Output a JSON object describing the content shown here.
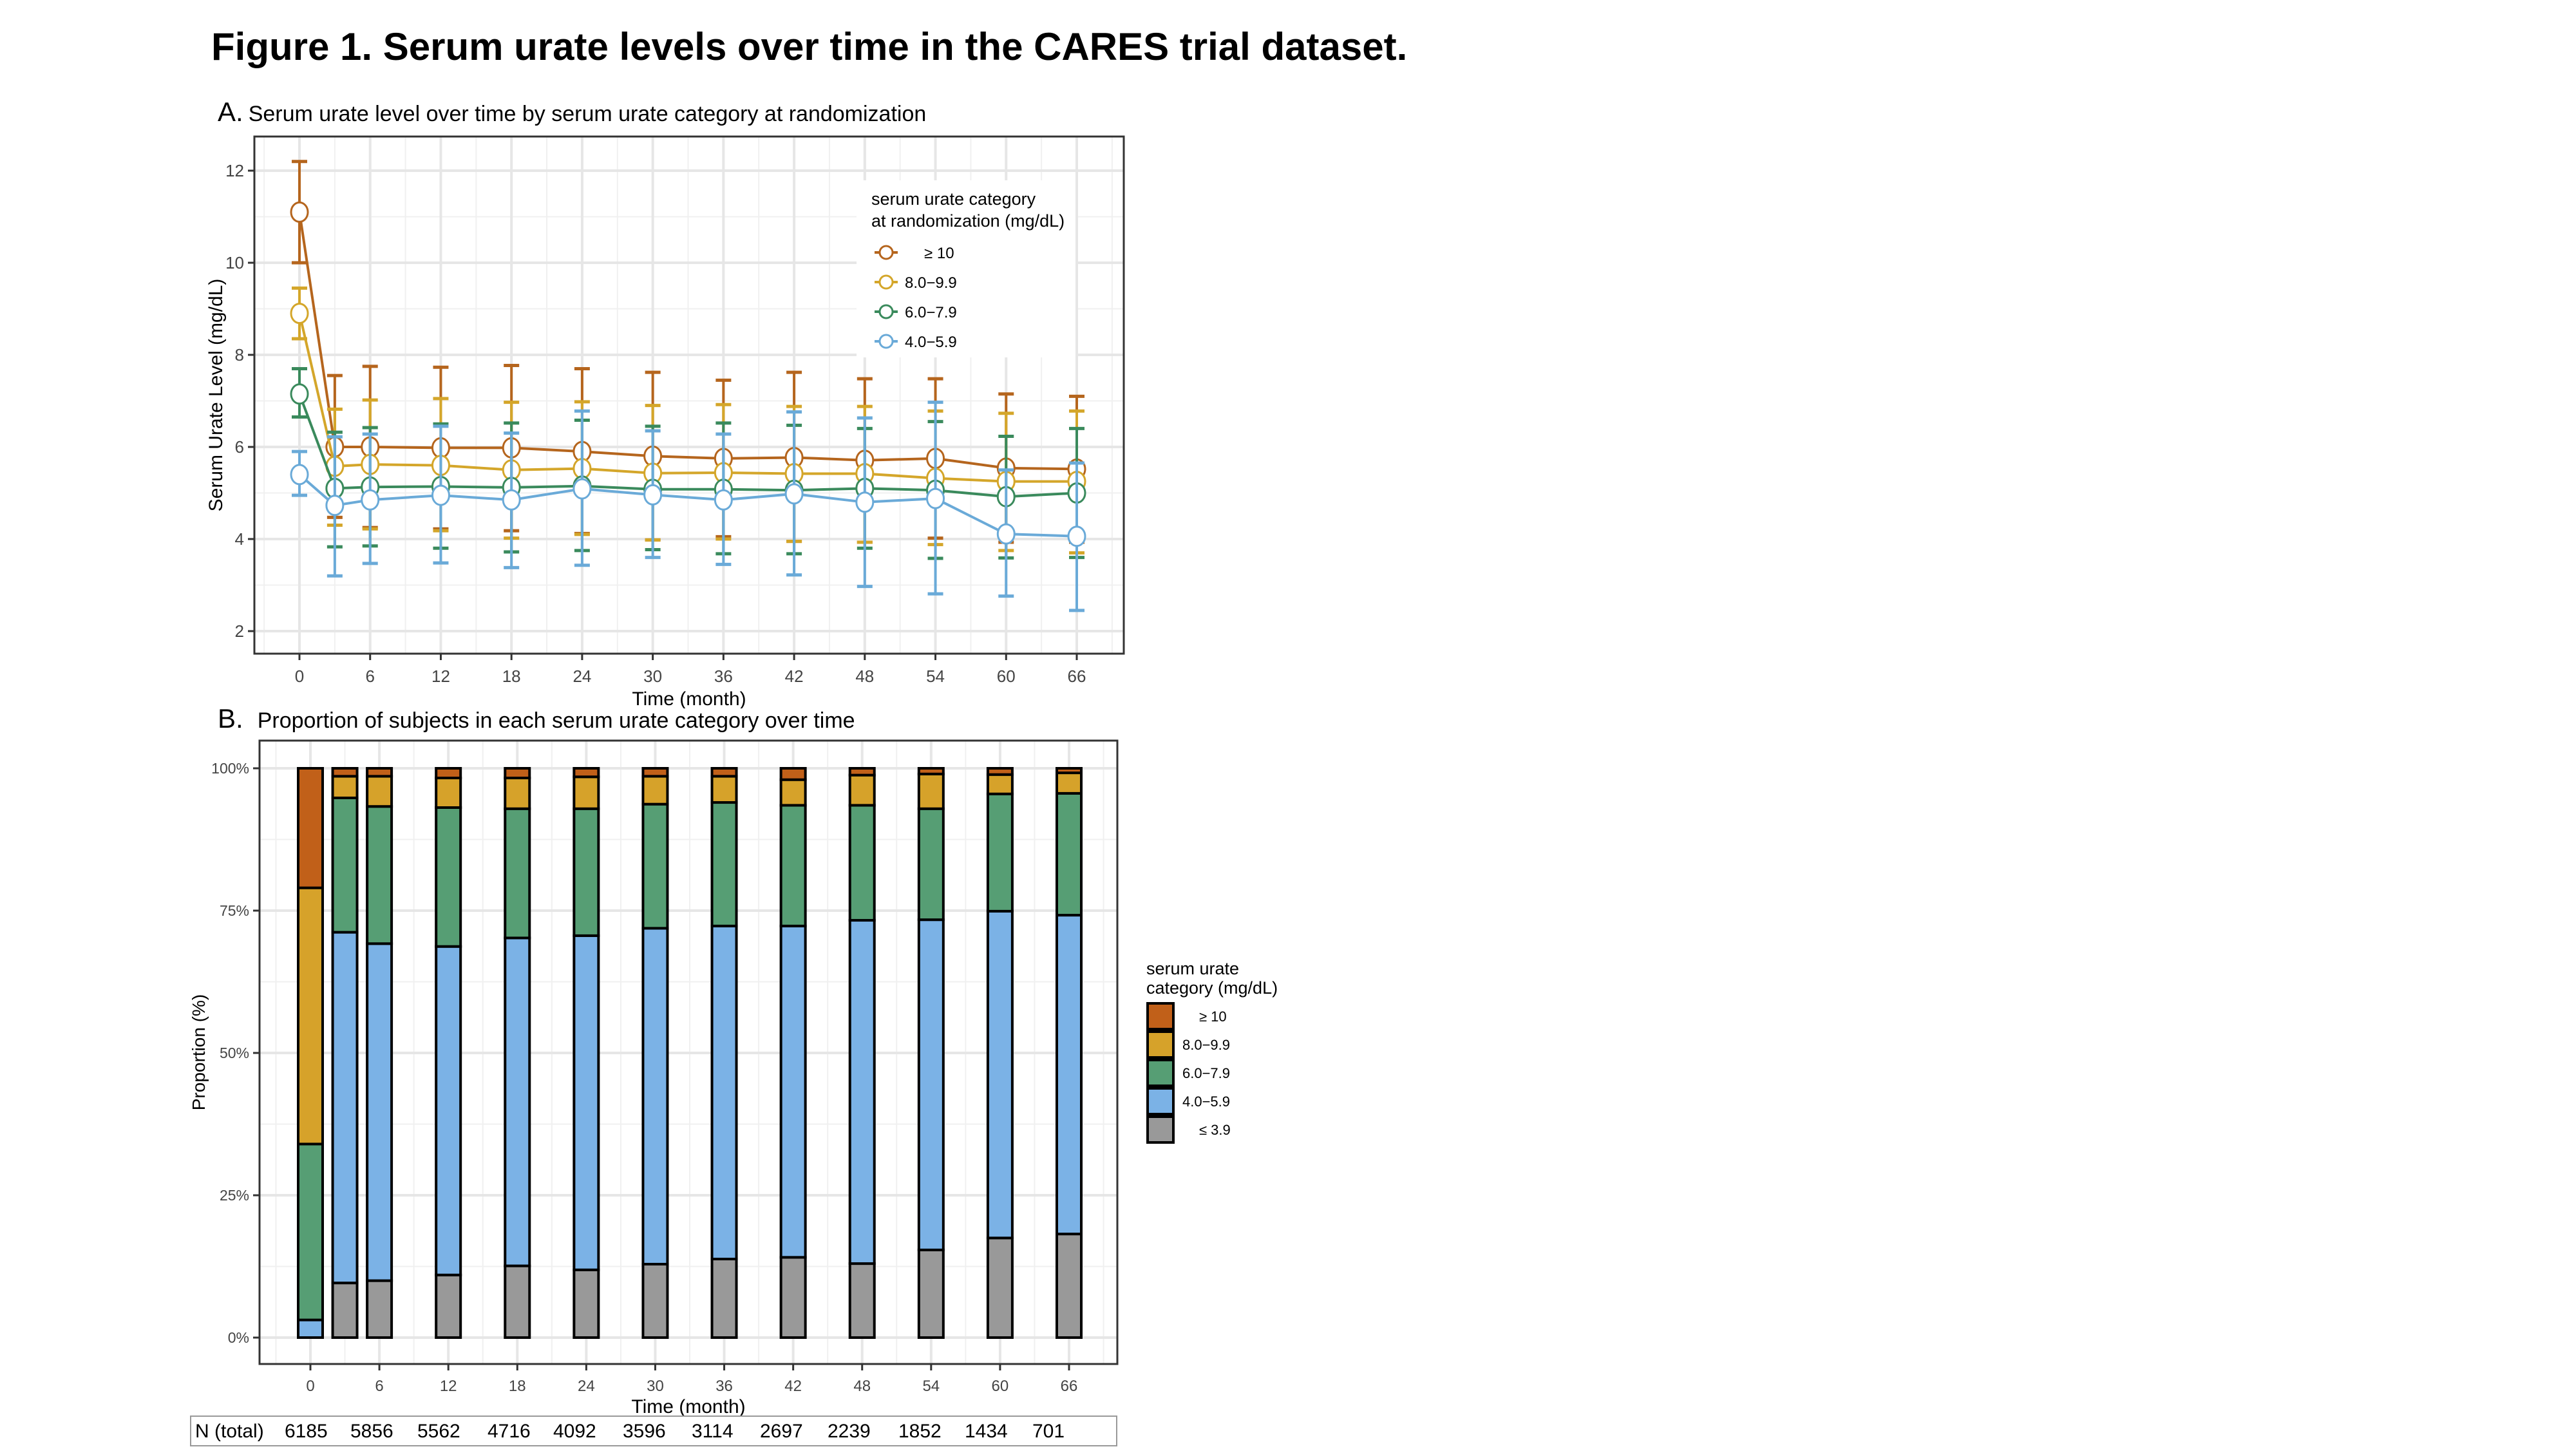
{
  "figure_title": "Figure 1. Serum urate levels over time in the CARES trial dataset.",
  "panel_a": {
    "letter": "A.",
    "subtitle": "Serum urate level over time by serum urate category at randomization"
  },
  "panel_b": {
    "letter": "B.",
    "subtitle": "Proportion of subjects in each serum urate category over time"
  },
  "n_total": {
    "label": "N (total)",
    "values": [
      "6185",
      "5856",
      "5562",
      "4716",
      "4092",
      "3596",
      "3114",
      "2697",
      "2239",
      "1852",
      "1434",
      "701"
    ]
  },
  "chart_data": [
    {
      "type": "line",
      "title": "Serum urate level over time by serum urate category at randomization",
      "xlabel": "Time (month)",
      "ylabel": "Serum Urate Level (mg/dL)",
      "x": [
        0,
        3,
        6,
        12,
        18,
        24,
        30,
        36,
        42,
        48,
        54,
        60,
        66
      ],
      "xticks": [
        0,
        6,
        12,
        18,
        24,
        30,
        36,
        42,
        48,
        54,
        60,
        66
      ],
      "yticks": [
        2,
        4,
        6,
        8,
        10,
        12
      ],
      "xlim": [
        -4,
        70
      ],
      "ylim": [
        1.5,
        12.7
      ],
      "grid": true,
      "legend": {
        "title": "serum urate category\nat randomization (mg/dL)",
        "position": "top-right"
      },
      "series": [
        {
          "name": "≥ 10",
          "color": "#B5651D",
          "mean": [
            11.1,
            6.0,
            6.0,
            5.98,
            5.98,
            5.9,
            5.8,
            5.75,
            5.77,
            5.71,
            5.75,
            5.54,
            5.52
          ],
          "upper": [
            12.2,
            7.55,
            7.75,
            7.73,
            7.77,
            7.7,
            7.62,
            7.45,
            7.62,
            7.48,
            7.48,
            7.15,
            7.1
          ],
          "lower": [
            10.0,
            4.47,
            4.25,
            4.22,
            4.18,
            4.12,
            3.98,
            4.05,
            3.95,
            3.93,
            4.02,
            3.93,
            3.93
          ]
        },
        {
          "name": "8.0−9.9",
          "color": "#D4A62A",
          "mean": [
            8.9,
            5.58,
            5.62,
            5.6,
            5.5,
            5.53,
            5.43,
            5.44,
            5.42,
            5.42,
            5.32,
            5.25,
            5.25
          ],
          "upper": [
            9.45,
            6.82,
            7.02,
            7.05,
            6.97,
            6.98,
            6.9,
            6.92,
            6.88,
            6.88,
            6.78,
            6.73,
            6.78
          ],
          "lower": [
            8.35,
            4.3,
            4.22,
            4.18,
            4.02,
            4.1,
            3.98,
            4.0,
            3.95,
            3.93,
            3.88,
            3.75,
            3.7
          ]
        },
        {
          "name": "6.0−7.9",
          "color": "#3A8A5C",
          "mean": [
            7.15,
            5.1,
            5.13,
            5.14,
            5.12,
            5.15,
            5.08,
            5.08,
            5.06,
            5.1,
            5.06,
            4.92,
            5.0
          ],
          "upper": [
            7.7,
            6.32,
            6.42,
            6.5,
            6.52,
            6.58,
            6.45,
            6.52,
            6.47,
            6.4,
            6.55,
            6.23,
            6.4
          ],
          "lower": [
            6.65,
            3.83,
            3.85,
            3.8,
            3.72,
            3.75,
            3.77,
            3.68,
            3.68,
            3.8,
            3.58,
            3.59,
            3.6
          ]
        },
        {
          "name": "4.0−5.9",
          "color": "#6AAAD8",
          "mean": [
            5.4,
            4.73,
            4.85,
            4.95,
            4.85,
            5.09,
            4.96,
            4.85,
            4.98,
            4.8,
            4.88,
            4.11,
            4.06
          ],
          "upper": [
            5.9,
            6.22,
            6.28,
            6.45,
            6.3,
            6.78,
            6.35,
            6.28,
            6.76,
            6.63,
            6.97,
            5.5,
            5.65
          ],
          "lower": [
            4.95,
            3.2,
            3.47,
            3.48,
            3.38,
            3.43,
            3.6,
            3.45,
            3.22,
            2.97,
            2.81,
            2.76,
            2.45
          ]
        }
      ]
    },
    {
      "type": "bar",
      "stacked": true,
      "title": "Proportion of subjects in each serum urate category over time",
      "xlabel": "Time (month)",
      "ylabel": "Proportion (%)",
      "categories": [
        0,
        3,
        6,
        12,
        18,
        24,
        30,
        36,
        42,
        48,
        54,
        60,
        66
      ],
      "xticks": [
        0,
        6,
        12,
        18,
        24,
        30,
        36,
        42,
        48,
        54,
        60,
        66
      ],
      "yticks": [
        "0%",
        "25%",
        "50%",
        "75%",
        "100%"
      ],
      "ylim": [
        0,
        100
      ],
      "grid": true,
      "legend": {
        "title": "serum urate\ncategory (mg/dL)",
        "position": "right"
      },
      "series": [
        {
          "name": "≤ 3.9",
          "color": "#999999",
          "values": [
            0.0,
            9.6,
            10.0,
            11.0,
            12.6,
            11.9,
            12.9,
            13.8,
            14.1,
            13.0,
            15.4,
            17.5,
            18.2
          ]
        },
        {
          "name": "4.0−5.9",
          "color": "#7BB2E6",
          "values": [
            3.1,
            61.6,
            59.2,
            57.7,
            57.6,
            58.7,
            59.0,
            58.5,
            58.2,
            60.3,
            58.0,
            57.4,
            56.0
          ]
        },
        {
          "name": "6.0−7.9",
          "color": "#569E74",
          "values": [
            30.9,
            23.6,
            24.1,
            24.4,
            22.7,
            22.3,
            21.8,
            21.7,
            21.2,
            20.2,
            19.5,
            20.6,
            21.4
          ]
        },
        {
          "name": "8.0−9.9",
          "color": "#D6A22A",
          "values": [
            45.0,
            3.8,
            5.3,
            5.2,
            5.4,
            5.6,
            4.9,
            4.6,
            4.5,
            5.3,
            6.1,
            3.4,
            3.6
          ]
        },
        {
          "name": "≥ 10",
          "color": "#C16019",
          "values": [
            21.0,
            1.4,
            1.4,
            1.7,
            1.7,
            1.5,
            1.4,
            1.4,
            2.0,
            1.2,
            1.0,
            1.1,
            0.8
          ]
        }
      ],
      "legend_order": [
        "≥ 10",
        "8.0−9.9",
        "6.0−7.9",
        "4.0−5.9",
        "≤ 3.9"
      ]
    }
  ]
}
